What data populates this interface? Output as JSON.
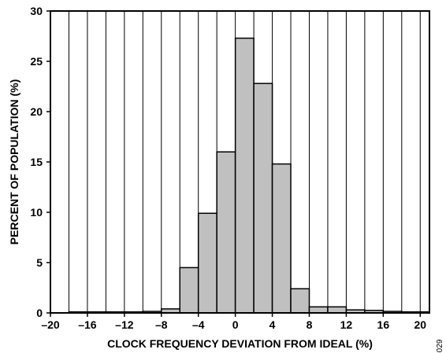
{
  "chart_data": {
    "type": "bar",
    "title": "",
    "xlabel": "CLOCK FREQUENCY DEVIATION FROM IDEAL (%)",
    "ylabel": "PERCENT OF POPULATION (%)",
    "xlim": [
      -20,
      21
    ],
    "ylim": [
      0,
      30
    ],
    "x_ticks": [
      -20,
      -16,
      -12,
      -8,
      -4,
      0,
      4,
      8,
      12,
      16,
      20
    ],
    "x_tick_labels": [
      "–20",
      "–16",
      "–12",
      "–8",
      "–4",
      "0",
      "4",
      "8",
      "12",
      "16",
      "20"
    ],
    "y_ticks": [
      0,
      5,
      10,
      15,
      20,
      25,
      30
    ],
    "y_tick_labels": [
      "0",
      "5",
      "10",
      "15",
      "20",
      "25",
      "30"
    ],
    "grid": "vertical",
    "bin_width": 2,
    "bins": [
      {
        "start": -18,
        "value": 0.1
      },
      {
        "start": -16,
        "value": 0.1
      },
      {
        "start": -14,
        "value": 0.1
      },
      {
        "start": -12,
        "value": 0.1
      },
      {
        "start": -10,
        "value": 0.15
      },
      {
        "start": -8,
        "value": 0.4
      },
      {
        "start": -6,
        "value": 4.5
      },
      {
        "start": -4,
        "value": 9.9
      },
      {
        "start": -2,
        "value": 16.0
      },
      {
        "start": 0,
        "value": 27.3
      },
      {
        "start": 2,
        "value": 22.8
      },
      {
        "start": 4,
        "value": 14.8
      },
      {
        "start": 6,
        "value": 2.4
      },
      {
        "start": 8,
        "value": 0.6
      },
      {
        "start": 10,
        "value": 0.6
      },
      {
        "start": 12,
        "value": 0.3
      },
      {
        "start": 14,
        "value": 0.25
      },
      {
        "start": 16,
        "value": 0.15
      },
      {
        "start": 18,
        "value": 0.1
      },
      {
        "start": 20,
        "value": 0.1
      }
    ],
    "bar_color": "#c0c0c0",
    "edge_color": "#000000",
    "figure_number": "029"
  }
}
